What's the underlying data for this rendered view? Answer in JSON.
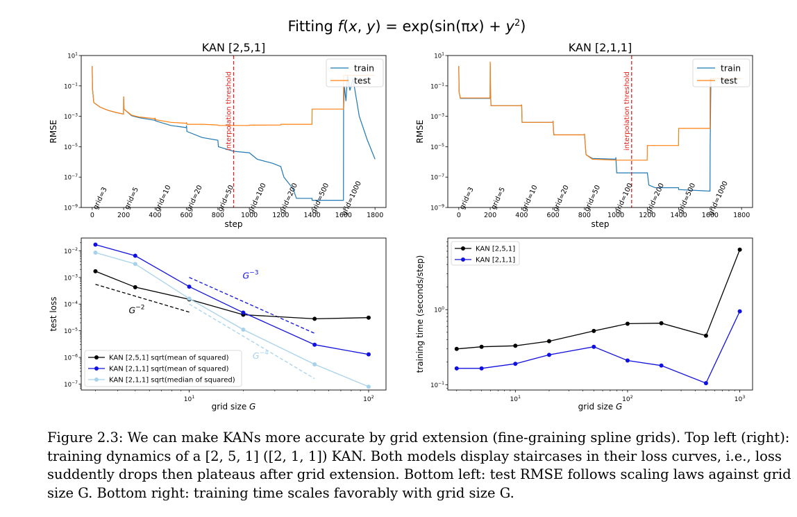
{
  "figure": {
    "suptitle": "Fitting f(x, y) = exp(sin(πx) + y²)"
  },
  "caption": {
    "lines": [
      "Figure 2.3: We can make KANs more accurate by grid extension (fine-graining spline grids). Top left (right):",
      "training dynamics of a [2, 5, 1] ([2, 1, 1]) KAN. Both models display staircases in their loss curves, i.e., loss",
      "suddently drops then plateaus after grid extension. Bottom left: test RMSE follows scaling laws against grid",
      "size G. Bottom right: training time scales favorably with grid size G."
    ]
  },
  "colors": {
    "train": "#1f77b4",
    "test": "#ff7f0e",
    "threshold": "#e0201b",
    "kan251": "#000000",
    "kan211": "#1010e0",
    "kan211_median": "#a6d3ea"
  },
  "chart_data": [
    {
      "id": "top-left",
      "type": "line",
      "title": "KAN [2,5,1]",
      "xlabel": "step",
      "ylabel": "RMSE",
      "xlim": [
        -70,
        1870
      ],
      "ylim": [
        1e-09,
        10
      ],
      "yscale": "log",
      "xticks": [
        0,
        200,
        400,
        600,
        800,
        1000,
        1200,
        1400,
        1600,
        1800
      ],
      "yticks": [
        "10^1",
        "10^-1",
        "10^-3",
        "10^-5",
        "10^-7",
        "10^-9"
      ],
      "legend": {
        "position": "top-right",
        "entries": [
          "train",
          "test"
        ]
      },
      "threshold": {
        "x": 900,
        "label": "interpolation threshold"
      },
      "grid_annotations": [
        {
          "step": 0,
          "label": "grid=3"
        },
        {
          "step": 200,
          "label": "grid=5"
        },
        {
          "step": 400,
          "label": "grid=10"
        },
        {
          "step": 600,
          "label": "grid=20"
        },
        {
          "step": 800,
          "label": "grid=50"
        },
        {
          "step": 1000,
          "label": "grid=100"
        },
        {
          "step": 1200,
          "label": "grid=200"
        },
        {
          "step": 1400,
          "label": "grid=500"
        },
        {
          "step": 1600,
          "label": "grid=1000"
        }
      ],
      "series": [
        {
          "name": "train",
          "points": [
            [
              0,
              2
            ],
            [
              2,
              0.06
            ],
            [
              10,
              0.008
            ],
            [
              50,
              0.004
            ],
            [
              100,
              0.0025
            ],
            [
              150,
              0.0018
            ],
            [
              199,
              0.0014
            ],
            [
              200,
              0.02
            ],
            [
              202,
              0.003
            ],
            [
              250,
              0.0011
            ],
            [
              300,
              0.0008
            ],
            [
              399,
              0.00055
            ],
            [
              400,
              0.0007
            ],
            [
              403,
              0.0005
            ],
            [
              500,
              0.00025
            ],
            [
              599,
              0.00018
            ],
            [
              600,
              0.00025
            ],
            [
              603,
              0.0001
            ],
            [
              700,
              4e-05
            ],
            [
              799,
              2.7e-05
            ],
            [
              800,
              2.5e-05
            ],
            [
              803,
              1e-05
            ],
            [
              900,
              5e-06
            ],
            [
              999,
              4e-06
            ],
            [
              1000,
              4e-06
            ],
            [
              1050,
              1.5e-06
            ],
            [
              1150,
              8e-07
            ],
            [
              1199,
              5e-07
            ],
            [
              1200,
              5e-07
            ],
            [
              1220,
              1e-07
            ],
            [
              1260,
              3e-08
            ],
            [
              1280,
              1.5e-08
            ],
            [
              1300,
              4e-09
            ],
            [
              1399,
              4e-09
            ],
            [
              1400,
              3e-09
            ],
            [
              1599,
              3e-09
            ],
            [
              1600,
              0.003
            ],
            [
              1605,
              0.1
            ],
            [
              1615,
              0.01
            ],
            [
              1625,
              0.5
            ],
            [
              1640,
              0.05
            ],
            [
              1660,
              0.3
            ],
            [
              1700,
              0.001
            ],
            [
              1750,
              3e-05
            ],
            [
              1800,
              1.5e-06
            ]
          ]
        },
        {
          "name": "test",
          "points": [
            [
              0,
              2
            ],
            [
              2,
              0.06
            ],
            [
              10,
              0.008
            ],
            [
              50,
              0.004
            ],
            [
              100,
              0.0025
            ],
            [
              150,
              0.0018
            ],
            [
              199,
              0.0014
            ],
            [
              200,
              0.02
            ],
            [
              202,
              0.003
            ],
            [
              250,
              0.0012
            ],
            [
              300,
              0.0009
            ],
            [
              399,
              0.0007
            ],
            [
              400,
              0.0008
            ],
            [
              403,
              0.0006
            ],
            [
              500,
              0.0004
            ],
            [
              599,
              0.00035
            ],
            [
              600,
              0.0004
            ],
            [
              603,
              0.0003
            ],
            [
              700,
              0.0003
            ],
            [
              799,
              0.00027
            ],
            [
              800,
              0.00027
            ],
            [
              803,
              0.00025
            ],
            [
              900,
              0.00025
            ],
            [
              999,
              0.00025
            ],
            [
              1000,
              0.00026
            ],
            [
              1199,
              0.00027
            ],
            [
              1200,
              0.0003
            ],
            [
              1399,
              0.0003
            ],
            [
              1400,
              0.003
            ],
            [
              1599,
              0.003
            ],
            [
              1600,
              0.5
            ],
            [
              1800,
              0.5
            ]
          ]
        }
      ]
    },
    {
      "id": "top-right",
      "type": "line",
      "title": "KAN [2,1,1]",
      "xlabel": "step",
      "ylabel": "RMSE",
      "xlim": [
        -70,
        1870
      ],
      "ylim": [
        1e-09,
        10
      ],
      "yscale": "log",
      "xticks": [
        0,
        200,
        400,
        600,
        800,
        1000,
        1200,
        1400,
        1600,
        1800
      ],
      "yticks": [
        "10^1",
        "10^-1",
        "10^-3",
        "10^-5",
        "10^-7",
        "10^-9"
      ],
      "legend": {
        "position": "top-right",
        "entries": [
          "train",
          "test"
        ]
      },
      "threshold": {
        "x": 1100,
        "label": "interpolation threshold"
      },
      "grid_annotations": [
        {
          "step": 0,
          "label": "grid=3"
        },
        {
          "step": 200,
          "label": "grid=5"
        },
        {
          "step": 400,
          "label": "grid=10"
        },
        {
          "step": 600,
          "label": "grid=20"
        },
        {
          "step": 800,
          "label": "grid=50"
        },
        {
          "step": 1000,
          "label": "grid=100"
        },
        {
          "step": 1200,
          "label": "grid=200"
        },
        {
          "step": 1400,
          "label": "grid=500"
        },
        {
          "step": 1600,
          "label": "grid=1000"
        }
      ],
      "series": [
        {
          "name": "train",
          "points": [
            [
              0,
              2
            ],
            [
              2,
              0.04
            ],
            [
              10,
              0.015
            ],
            [
              50,
              0.015
            ],
            [
              199,
              0.015
            ],
            [
              200,
              3
            ],
            [
              202,
              0.04
            ],
            [
              205,
              0.005
            ],
            [
              399,
              0.005
            ],
            [
              400,
              0.006
            ],
            [
              403,
              0.0004
            ],
            [
              599,
              0.0004
            ],
            [
              600,
              0.0005
            ],
            [
              605,
              6e-05
            ],
            [
              799,
              6e-05
            ],
            [
              800,
              7e-05
            ],
            [
              810,
              3e-06
            ],
            [
              850,
              1.7e-06
            ],
            [
              999,
              1.5e-06
            ],
            [
              1000,
              2e-06
            ],
            [
              1005,
              1.9e-07
            ],
            [
              1199,
              1.9e-07
            ],
            [
              1200,
              2e-07
            ],
            [
              1210,
              3e-08
            ],
            [
              1250,
              2e-08
            ],
            [
              1399,
              2e-08
            ],
            [
              1400,
              1.5e-08
            ],
            [
              1599,
              1.2e-08
            ],
            [
              1600,
              1e-05
            ],
            [
              1605,
              0.3
            ],
            [
              1800,
              0.3
            ]
          ]
        },
        {
          "name": "test",
          "points": [
            [
              0,
              2
            ],
            [
              2,
              0.04
            ],
            [
              10,
              0.016
            ],
            [
              50,
              0.016
            ],
            [
              199,
              0.016
            ],
            [
              200,
              4
            ],
            [
              202,
              0.04
            ],
            [
              205,
              0.005
            ],
            [
              399,
              0.005
            ],
            [
              400,
              0.006
            ],
            [
              403,
              0.0004
            ],
            [
              599,
              0.0004
            ],
            [
              600,
              0.0005
            ],
            [
              605,
              6e-05
            ],
            [
              799,
              6e-05
            ],
            [
              800,
              7e-05
            ],
            [
              810,
              3e-06
            ],
            [
              850,
              1.5e-06
            ],
            [
              999,
              1.3e-06
            ],
            [
              1000,
              1.3e-06
            ],
            [
              1199,
              1.3e-06
            ],
            [
              1200,
              1.2e-05
            ],
            [
              1399,
              1.2e-05
            ],
            [
              1400,
              0.00016
            ],
            [
              1599,
              0.00016
            ],
            [
              1600,
              0.3
            ],
            [
              1800,
              0.3
            ]
          ]
        }
      ]
    },
    {
      "id": "bottom-left",
      "type": "line",
      "xlabel": "grid size G",
      "ylabel": "test loss",
      "xscale": "log",
      "yscale": "log",
      "xlim": [
        2.5,
        125
      ],
      "ylim": [
        6e-08,
        0.03
      ],
      "xticks": [
        "10^1",
        "10^2"
      ],
      "yticks": [
        "10^-2",
        "10^-3",
        "10^-4",
        "10^-5",
        "10^-6",
        "10^-7"
      ],
      "legend": {
        "position": "bottom-left"
      },
      "x": [
        3,
        5,
        10,
        20,
        50,
        100
      ],
      "series": [
        {
          "name": "KAN [2,5,1] sqrt(mean of squared)",
          "values": [
            0.0017,
            0.00043,
            0.00015,
            4e-05,
            2.8e-05,
            3.1e-05
          ]
        },
        {
          "name": "KAN [2,1,1] sqrt(mean of squared)",
          "values": [
            0.017,
            0.0065,
            0.00045,
            4.8e-05,
            3e-06,
            1.3e-06
          ]
        },
        {
          "name": "KAN [2,1,1] sqrt(median of squared)",
          "values": [
            0.0085,
            0.0032,
            0.00016,
            1.1e-05,
            5.5e-07,
            8e-08
          ]
        }
      ],
      "reference_lines": [
        {
          "label": "G^-2",
          "x": [
            3,
            10
          ],
          "y": [
            0.00055,
            5e-05
          ]
        },
        {
          "label": "G^-3",
          "x": [
            10,
            50
          ],
          "y": [
            0.001,
            8e-06
          ]
        },
        {
          "label": "G^-4",
          "x": [
            10,
            50
          ],
          "y": [
            0.0001,
            1.6e-07
          ]
        }
      ]
    },
    {
      "id": "bottom-right",
      "type": "line",
      "xlabel": "grid size G",
      "ylabel": "training time (seconds/step)",
      "xscale": "log",
      "yscale": "log",
      "xlim": [
        2.5,
        1300
      ],
      "ylim": [
        0.085,
        9
      ],
      "xticks": [
        "10^1",
        "10^2",
        "10^3"
      ],
      "yticks": [
        "10^0",
        "10^-1"
      ],
      "legend": {
        "position": "top-left",
        "entries": [
          "KAN [2,5,1]",
          "KAN [2,1,1]"
        ]
      },
      "x": [
        3,
        5,
        10,
        20,
        50,
        100,
        200,
        500,
        1000
      ],
      "series": [
        {
          "name": "KAN [2,5,1]",
          "values": [
            0.3,
            0.32,
            0.33,
            0.38,
            0.52,
            0.65,
            0.66,
            0.45,
            6.3
          ]
        },
        {
          "name": "KAN [2,1,1]",
          "values": [
            0.165,
            0.165,
            0.19,
            0.25,
            0.32,
            0.21,
            0.18,
            0.105,
            0.95
          ]
        }
      ]
    }
  ]
}
